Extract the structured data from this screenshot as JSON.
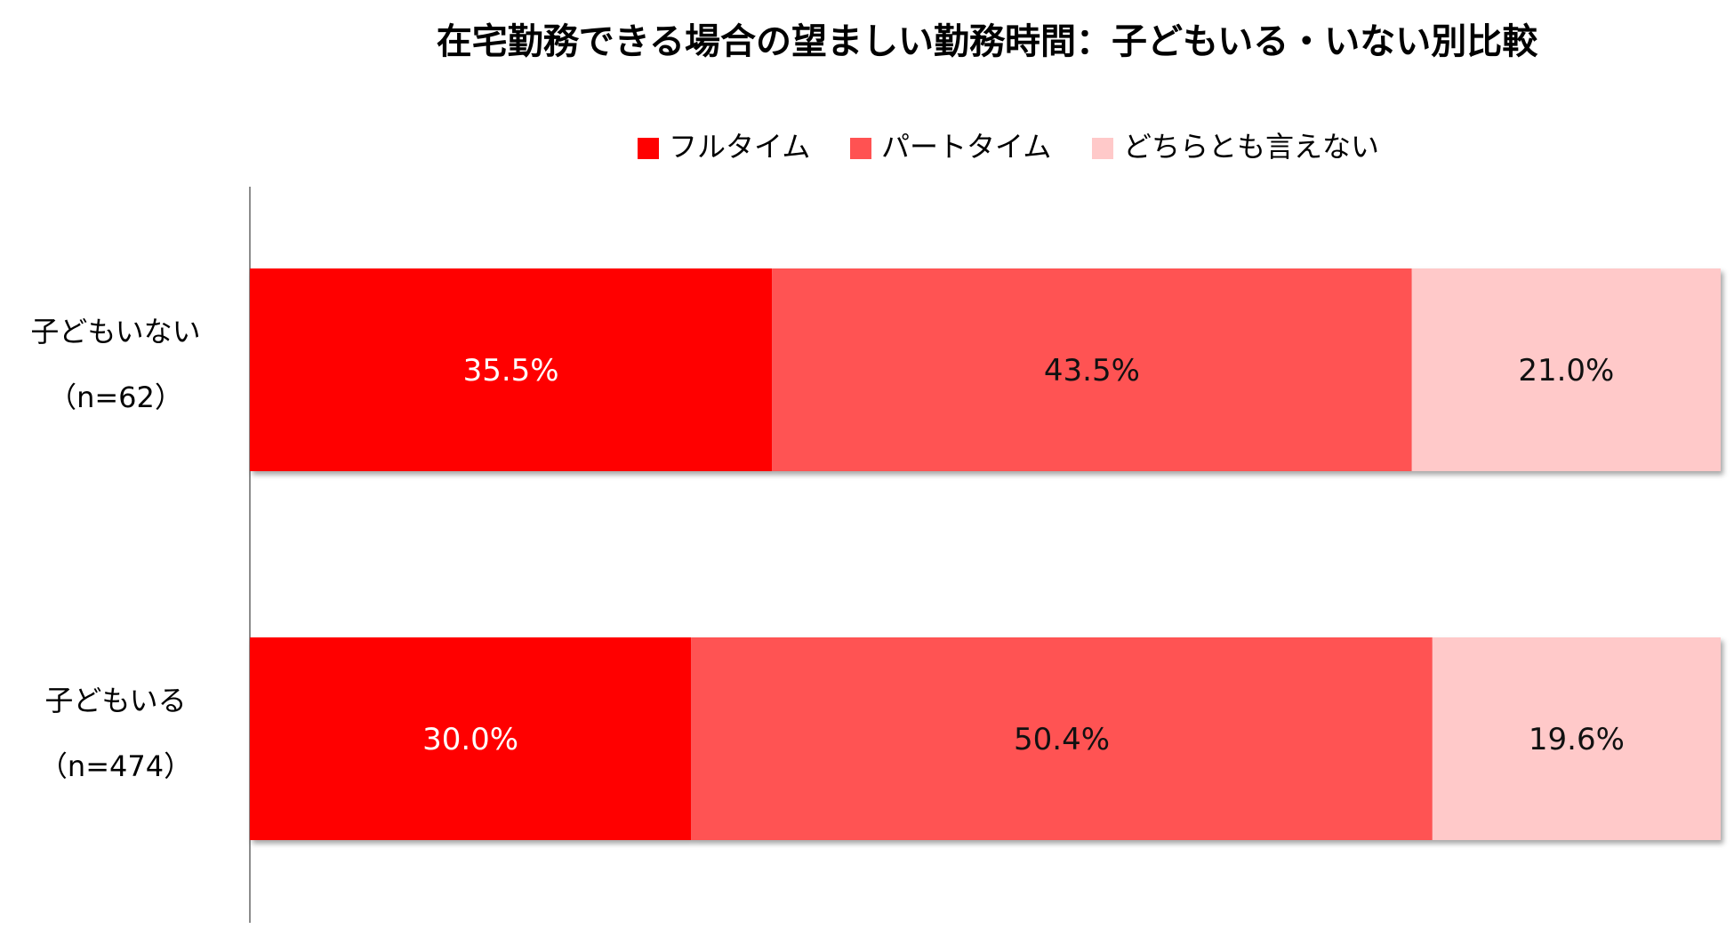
{
  "chart_data": {
    "type": "bar",
    "orientation": "horizontal",
    "stacked": true,
    "title": "在宅勤務できる場合の望ましい勤務時間：子どもいる・いない別比較",
    "xlabel": "",
    "ylabel": "",
    "xlim": [
      0,
      100
    ],
    "grid": false,
    "legend_position": "top",
    "categories": [
      {
        "label": "子どもいない",
        "n": "（n=62）"
      },
      {
        "label": "子どもいる",
        "n": "（n=474）"
      }
    ],
    "series": [
      {
        "name": "フルタイム",
        "color": "#ff0000",
        "text_color": "#ffffff",
        "values": [
          35.5,
          30.0
        ],
        "value_labels": [
          "35.5%",
          "30.0%"
        ]
      },
      {
        "name": "パートタイム",
        "color": "#ff5252",
        "text_color": "#111111",
        "values": [
          43.5,
          50.4
        ],
        "value_labels": [
          "43.5%",
          "50.4%"
        ]
      },
      {
        "name": "どちらとも言えない",
        "color": "#ffc9c9",
        "text_color": "#111111",
        "values": [
          21.0,
          19.6
        ],
        "value_labels": [
          "21.0%",
          "19.6%"
        ]
      }
    ]
  }
}
